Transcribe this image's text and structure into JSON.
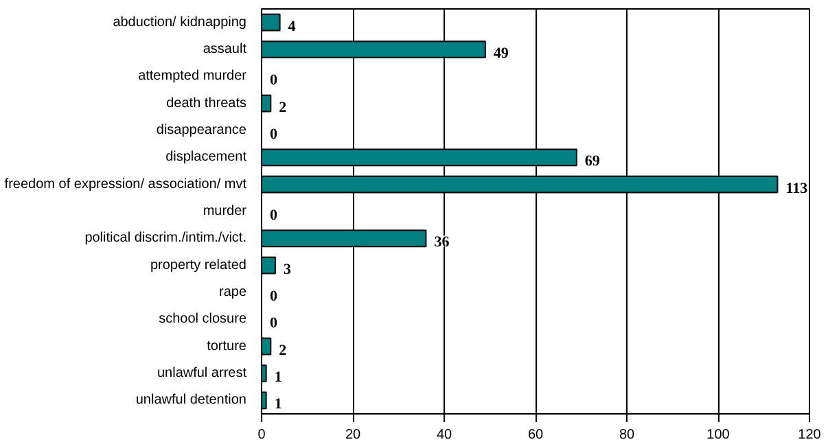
{
  "chart_data": {
    "type": "bar",
    "orientation": "horizontal",
    "categories": [
      "abduction/ kidnapping",
      "assault",
      "attempted murder",
      "death threats",
      "disappearance",
      "displacement",
      "freedom of expression/ association/ mvt",
      "murder",
      "political discrim./intim./vict.",
      "property related",
      "rape",
      "school closure",
      "torture",
      "unlawful arrest",
      "unlawful detention"
    ],
    "values": [
      4,
      49,
      0,
      2,
      0,
      69,
      113,
      0,
      36,
      3,
      0,
      0,
      2,
      1,
      1
    ],
    "color": "#008080",
    "xlim": [
      0,
      120
    ],
    "xticks": [
      0,
      20,
      40,
      60,
      80,
      100,
      120
    ],
    "grid": "x",
    "data_labels": true
  }
}
